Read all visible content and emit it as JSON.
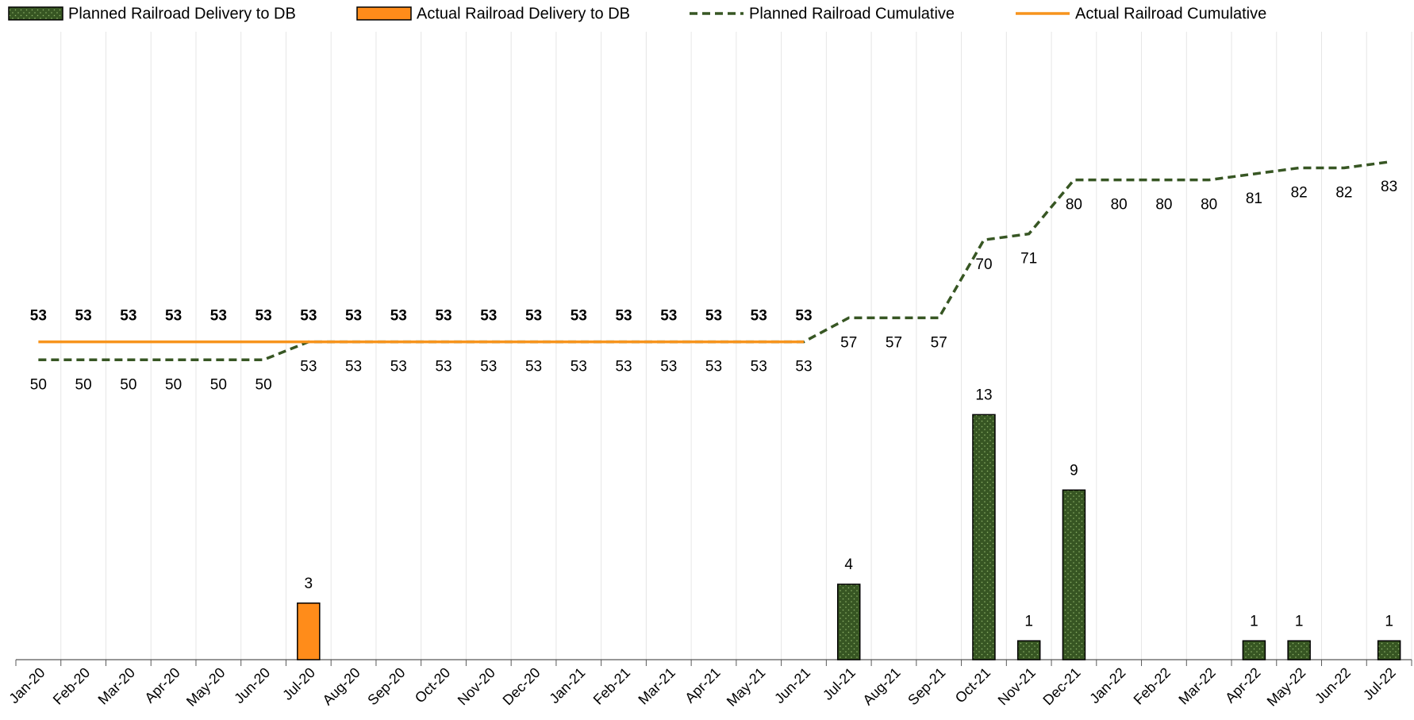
{
  "chart_data": {
    "type": "combo",
    "categories": [
      "Jan-20",
      "Feb-20",
      "Mar-20",
      "Apr-20",
      "May-20",
      "Jun-20",
      "Jul-20",
      "Aug-20",
      "Sep-20",
      "Oct-20",
      "Nov-20",
      "Dec-20",
      "Jan-21",
      "Feb-21",
      "Mar-21",
      "Apr-21",
      "May-21",
      "Jun-21",
      "Jul-21",
      "Aug-21",
      "Sep-21",
      "Oct-21",
      "Nov-21",
      "Dec-21",
      "Jan-22",
      "Feb-22",
      "Mar-22",
      "Apr-22",
      "May-22",
      "Jun-22",
      "Jul-22"
    ],
    "ylim": [
      0,
      35
    ],
    "y2lim": [
      0,
      110
    ],
    "grid": true,
    "legend": "top",
    "series": [
      {
        "name": "Planned Railroad Delivery to DB",
        "type": "bar",
        "color": "#375623",
        "pattern": "dots",
        "values": [
          null,
          null,
          null,
          null,
          null,
          null,
          null,
          null,
          null,
          null,
          null,
          null,
          null,
          null,
          null,
          null,
          null,
          null,
          4,
          null,
          null,
          13,
          1,
          9,
          null,
          null,
          null,
          1,
          1,
          null,
          1
        ]
      },
      {
        "name": "Actual Railroad Delivery to DB",
        "type": "bar",
        "color": "#ff8c1a",
        "values": [
          null,
          null,
          null,
          null,
          null,
          null,
          3,
          null,
          null,
          null,
          null,
          null,
          null,
          null,
          null,
          null,
          null,
          null,
          null,
          null,
          null,
          null,
          null,
          null,
          null,
          null,
          null,
          null,
          null,
          null,
          null
        ]
      },
      {
        "name": "Planned Railroad Cumulative",
        "type": "line",
        "axis": "y2",
        "color": "#375623",
        "dashed": true,
        "label_position": "below",
        "label_color": "#000000",
        "values": [
          50,
          50,
          50,
          50,
          50,
          50,
          53,
          53,
          53,
          53,
          53,
          53,
          53,
          53,
          53,
          53,
          53,
          53,
          57,
          57,
          57,
          70,
          71,
          80,
          80,
          80,
          80,
          81,
          82,
          82,
          83
        ]
      },
      {
        "name": "Actual Railroad Cumulative",
        "type": "line",
        "axis": "y2",
        "color": "#f7941d",
        "dashed": false,
        "label_position": "above",
        "label_color": "#c55a11",
        "label_bold": true,
        "values": [
          53,
          53,
          53,
          53,
          53,
          53,
          53,
          53,
          53,
          53,
          53,
          53,
          53,
          53,
          53,
          53,
          53,
          53,
          null,
          null,
          null,
          null,
          null,
          null,
          null,
          null,
          null,
          null,
          null,
          null,
          null
        ]
      }
    ]
  }
}
